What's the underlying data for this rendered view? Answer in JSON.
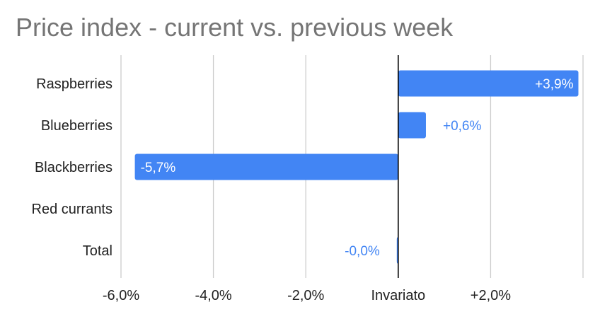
{
  "chart_data": {
    "type": "bar",
    "orientation": "horizontal",
    "title": "Price index - current vs. previous week",
    "categories": [
      "Raspberries",
      "Blueberries",
      "Blackberries",
      "Red currants",
      "Total"
    ],
    "values": [
      3.9,
      0.6,
      -5.7,
      null,
      -0.02
    ],
    "data_labels": [
      "+3,9%",
      "+0,6%",
      "-5,7%",
      "",
      "-0,0%"
    ],
    "xlim": [
      -6.0,
      4.0
    ],
    "x_ticks": [
      {
        "value": -6,
        "label": "-6,0%"
      },
      {
        "value": -4,
        "label": "-4,0%"
      },
      {
        "value": -2,
        "label": "-2,0%"
      },
      {
        "value": 0,
        "label": "Invariato"
      },
      {
        "value": 2,
        "label": "+2,0%"
      }
    ],
    "grid": true,
    "legend": "none",
    "colors": {
      "bar": "#4285f4",
      "grid": "#cccccc",
      "zero_line": "#000000",
      "title": "#757575"
    }
  }
}
